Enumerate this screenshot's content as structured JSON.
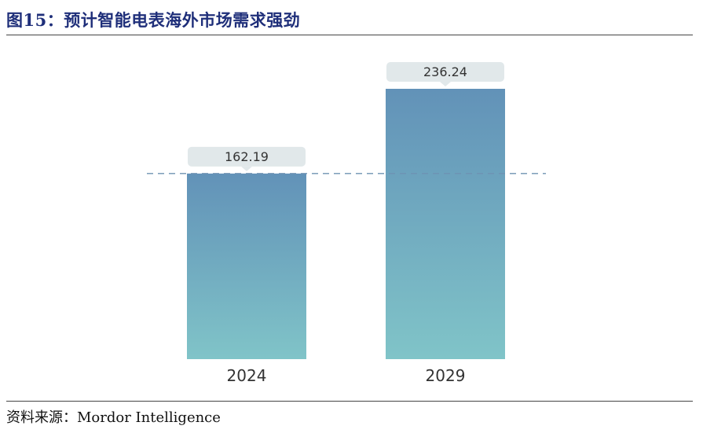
{
  "header": {
    "title": "图15：预计智能电表海外市场需求强劲"
  },
  "footer": {
    "source": "资料来源：Mordor Intelligence"
  },
  "colors": {
    "bar_top": "#6292b8",
    "bar_bottom": "#80c4c8",
    "label_box": "#e1e8ea",
    "dashed_line": "#6e93b2"
  },
  "chart_data": {
    "type": "bar",
    "categories": [
      "2024",
      "2029"
    ],
    "values": [
      162.19,
      236.24
    ],
    "value_labels": [
      "162.19",
      "236.24"
    ],
    "reference_line": 162.19,
    "title": "",
    "xlabel": "",
    "ylabel": "",
    "ylim": [
      0,
      236.24
    ],
    "grid": false,
    "legend": "none"
  }
}
